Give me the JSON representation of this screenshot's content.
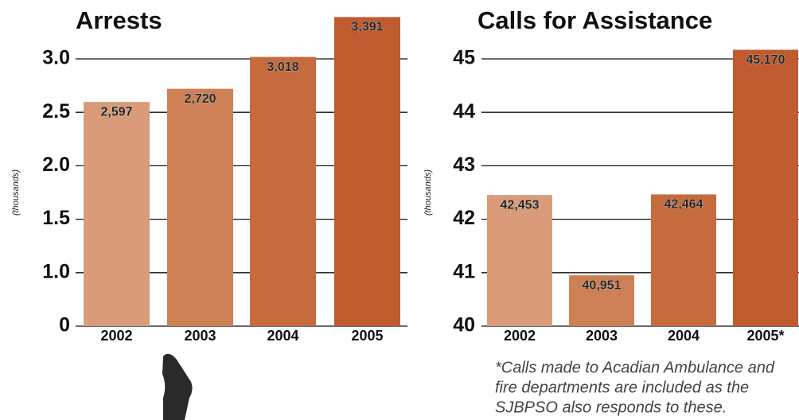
{
  "chart_data": [
    {
      "type": "bar",
      "title": "Arrests",
      "y_label": "(thousands)",
      "categories": [
        "2002",
        "2003",
        "2004",
        "2005"
      ],
      "values": [
        2.597,
        2.72,
        3.018,
        3.391
      ],
      "value_labels": [
        "2,597",
        "2,720",
        "3,018",
        "3,391"
      ],
      "colors": [
        "#d99b79",
        "#cd7f55",
        "#c56b3e",
        "#bf5b2f"
      ],
      "ylim": [
        0.5,
        3.0
      ],
      "yticks": [
        {
          "value": 0.5,
          "label": "0"
        },
        {
          "value": 1.0,
          "label": "1.0"
        },
        1.5,
        {
          "value": 2.0,
          "label": "2.0"
        },
        2.5,
        {
          "value": 3.0,
          "label": "3.0"
        }
      ],
      "grid": true
    },
    {
      "type": "bar",
      "title": "Calls for Assistance",
      "y_label": "(thousands)",
      "categories": [
        "2002",
        "2003",
        "2004",
        "2005*"
      ],
      "values": [
        42.453,
        40.951,
        42.464,
        45.17
      ],
      "value_labels": [
        "42,453",
        "40,951",
        "42,464",
        "45,170"
      ],
      "colors": [
        "#d99b79",
        "#cd7f55",
        "#c56b3e",
        "#bf5b2f"
      ],
      "ylim": [
        40,
        45
      ],
      "yticks": [
        40,
        41,
        42,
        43,
        44,
        45
      ],
      "grid": true,
      "annotation": [
        "*Calls made to Acadian Ambulance and",
        "fire departments are included as the",
        "SJBPSO also responds to these."
      ]
    }
  ]
}
